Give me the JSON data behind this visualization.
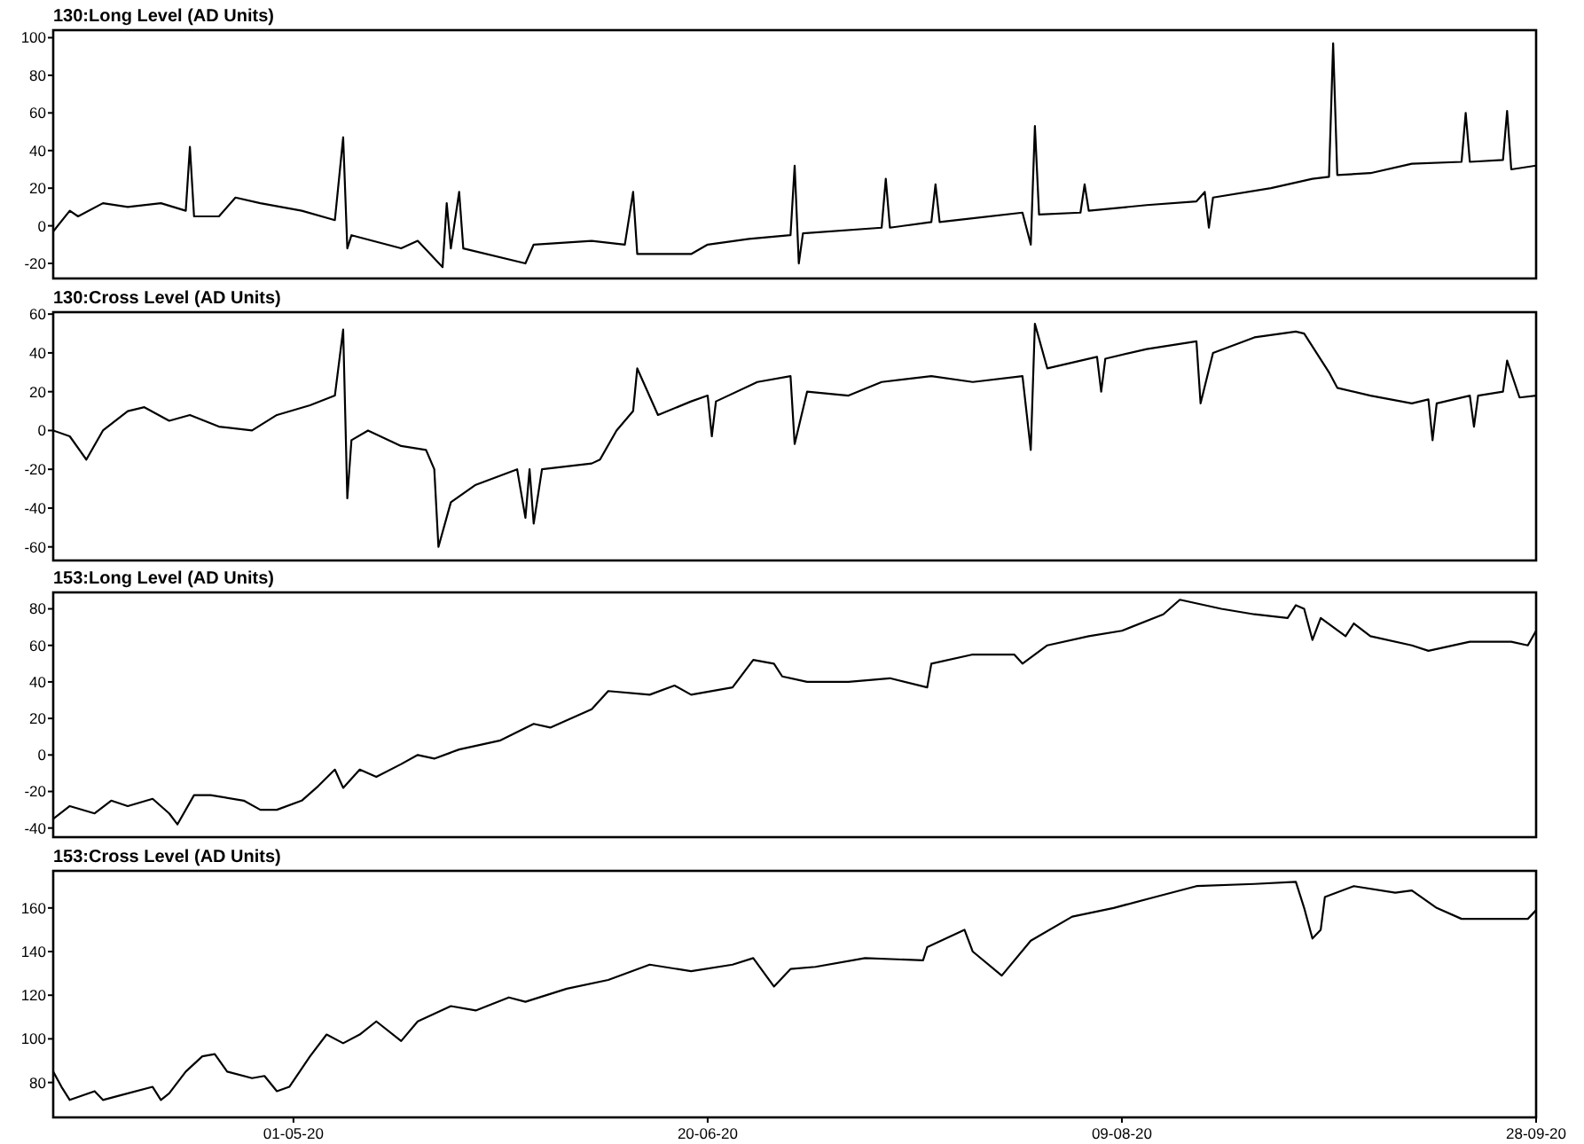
{
  "chart_data": [
    {
      "type": "line",
      "title": "130:Long Level (AD Units)",
      "tick_labels": "y",
      "xlim": [
        "2020-04-02",
        "2020-09-28"
      ],
      "ylim": [
        -28,
        104
      ],
      "yticks": [
        -20,
        0,
        20,
        40,
        60,
        80,
        100
      ],
      "grid": false,
      "marker": "none",
      "line_style": "solid",
      "x": [
        "2020-04-02",
        "2020-04-04",
        "2020-04-05",
        "2020-04-08",
        "2020-04-11",
        "2020-04-15",
        "2020-04-18",
        "2020-04-18T12:00",
        "2020-04-19",
        "2020-04-22",
        "2020-04-24",
        "2020-04-27",
        "2020-05-02",
        "2020-05-06",
        "2020-05-07",
        "2020-05-07T12:00",
        "2020-05-08",
        "2020-05-14",
        "2020-05-16",
        "2020-05-19",
        "2020-05-19T12:00",
        "2020-05-20",
        "2020-05-21",
        "2020-05-21T12:00",
        "2020-05-29",
        "2020-05-30",
        "2020-06-06",
        "2020-06-10",
        "2020-06-11",
        "2020-06-11T12:00",
        "2020-06-18",
        "2020-06-20",
        "2020-06-25",
        "2020-06-30",
        "2020-06-30T12:00",
        "2020-07-01",
        "2020-07-01T12:00",
        "2020-07-11",
        "2020-07-11T12:00",
        "2020-07-12",
        "2020-07-17",
        "2020-07-17T12:00",
        "2020-07-18",
        "2020-07-22",
        "2020-07-28",
        "2020-07-29",
        "2020-07-29T12:00",
        "2020-07-30",
        "2020-08-04",
        "2020-08-04T12:00",
        "2020-08-05",
        "2020-08-12",
        "2020-08-18",
        "2020-08-19",
        "2020-08-19T12:00",
        "2020-08-20",
        "2020-08-27",
        "2020-09-01",
        "2020-09-03",
        "2020-09-03T12:00",
        "2020-09-04",
        "2020-09-08",
        "2020-09-13",
        "2020-09-19",
        "2020-09-19T12:00",
        "2020-09-20",
        "2020-09-24",
        "2020-09-24T12:00",
        "2020-09-25",
        "2020-09-28"
      ],
      "series": [
        {
          "color": "#000000",
          "values": [
            -3,
            8,
            5,
            12,
            10,
            12,
            8,
            42,
            5,
            5,
            15,
            12,
            8,
            3,
            47,
            -12,
            -5,
            -12,
            -8,
            -22,
            12,
            -12,
            18,
            -12,
            -20,
            -10,
            -8,
            -10,
            18,
            -15,
            -15,
            -10,
            -7,
            -5,
            32,
            -20,
            -4,
            -1,
            25,
            -1,
            2,
            22,
            2,
            4,
            7,
            -10,
            53,
            6,
            7,
            22,
            8,
            11,
            13,
            18,
            -1,
            15,
            20,
            25,
            26,
            97,
            27,
            28,
            33,
            34,
            60,
            34,
            35,
            61,
            30,
            32
          ]
        }
      ]
    },
    {
      "type": "line",
      "title": "130:Cross Level (AD Units)",
      "tick_labels": "y",
      "xlim": [
        "2020-04-02",
        "2020-09-28"
      ],
      "ylim": [
        -67,
        61
      ],
      "yticks": [
        -60,
        -40,
        -20,
        0,
        20,
        40,
        60
      ],
      "grid": false,
      "marker": "none",
      "line_style": "solid",
      "x": [
        "2020-04-02",
        "2020-04-04",
        "2020-04-06",
        "2020-04-08",
        "2020-04-11",
        "2020-04-13",
        "2020-04-16",
        "2020-04-18T12:00",
        "2020-04-22",
        "2020-04-26",
        "2020-04-29",
        "2020-05-03",
        "2020-05-06",
        "2020-05-07",
        "2020-05-07T12:00",
        "2020-05-08",
        "2020-05-10",
        "2020-05-14",
        "2020-05-17",
        "2020-05-18",
        "2020-05-18T12:00",
        "2020-05-20",
        "2020-05-23",
        "2020-05-28",
        "2020-05-29",
        "2020-05-29T12:00",
        "2020-05-30",
        "2020-05-31",
        "2020-06-06",
        "2020-06-07",
        "2020-06-09",
        "2020-06-11",
        "2020-06-11T12:00",
        "2020-06-14",
        "2020-06-18",
        "2020-06-20",
        "2020-06-20T12:00",
        "2020-06-21",
        "2020-06-26",
        "2020-06-30",
        "2020-06-30T12:00",
        "2020-07-02",
        "2020-07-07",
        "2020-07-11",
        "2020-07-17",
        "2020-07-22",
        "2020-07-28",
        "2020-07-29",
        "2020-07-29T12:00",
        "2020-07-31",
        "2020-08-06",
        "2020-08-06T12:00",
        "2020-08-07",
        "2020-08-12",
        "2020-08-18",
        "2020-08-18T12:00",
        "2020-08-20",
        "2020-08-25",
        "2020-08-30",
        "2020-08-31",
        "2020-09-03",
        "2020-09-04",
        "2020-09-08",
        "2020-09-13",
        "2020-09-15",
        "2020-09-15T12:00",
        "2020-09-16",
        "2020-09-20",
        "2020-09-20T12:00",
        "2020-09-21",
        "2020-09-24",
        "2020-09-24T12:00",
        "2020-09-26",
        "2020-09-28"
      ],
      "series": [
        {
          "color": "#000000",
          "values": [
            0,
            -3,
            -15,
            0,
            10,
            12,
            5,
            8,
            2,
            0,
            8,
            13,
            18,
            52,
            -35,
            -5,
            0,
            -8,
            -10,
            -20,
            -60,
            -37,
            -28,
            -20,
            -45,
            -20,
            -48,
            -20,
            -17,
            -15,
            0,
            10,
            32,
            8,
            15,
            18,
            -3,
            15,
            25,
            28,
            -7,
            20,
            18,
            25,
            28,
            25,
            28,
            -10,
            55,
            32,
            38,
            20,
            37,
            42,
            46,
            14,
            40,
            48,
            51,
            50,
            30,
            22,
            18,
            14,
            16,
            -5,
            14,
            18,
            2,
            18,
            20,
            36,
            17,
            18
          ]
        }
      ]
    },
    {
      "type": "line",
      "title": "153:Long Level (AD Units)",
      "tick_labels": "y",
      "xlim": [
        "2020-04-02",
        "2020-09-28"
      ],
      "ylim": [
        -45,
        89
      ],
      "yticks": [
        -40,
        -20,
        0,
        20,
        40,
        60,
        80
      ],
      "grid": false,
      "marker": "none",
      "line_style": "solid",
      "x": [
        "2020-04-02",
        "2020-04-04",
        "2020-04-07",
        "2020-04-09",
        "2020-04-11",
        "2020-04-14",
        "2020-04-16",
        "2020-04-17",
        "2020-04-19",
        "2020-04-21",
        "2020-04-25",
        "2020-04-27",
        "2020-04-29",
        "2020-05-02",
        "2020-05-04",
        "2020-05-06",
        "2020-05-07",
        "2020-05-09",
        "2020-05-11",
        "2020-05-14",
        "2020-05-16",
        "2020-05-18",
        "2020-05-21",
        "2020-05-26",
        "2020-05-30",
        "2020-06-01",
        "2020-06-06",
        "2020-06-08",
        "2020-06-13",
        "2020-06-16",
        "2020-06-18",
        "2020-06-23",
        "2020-06-25T12:00",
        "2020-06-28",
        "2020-06-29",
        "2020-07-02",
        "2020-07-07",
        "2020-07-12",
        "2020-07-16T12:00",
        "2020-07-17",
        "2020-07-22",
        "2020-07-27",
        "2020-07-28",
        "2020-07-31",
        "2020-08-05",
        "2020-08-09",
        "2020-08-14",
        "2020-08-16",
        "2020-08-21",
        "2020-08-25",
        "2020-08-29",
        "2020-08-30",
        "2020-08-31",
        "2020-09-01",
        "2020-09-02",
        "2020-09-05",
        "2020-09-06",
        "2020-09-08",
        "2020-09-13",
        "2020-09-15",
        "2020-09-20",
        "2020-09-25",
        "2020-09-27",
        "2020-09-28"
      ],
      "series": [
        {
          "color": "#000000",
          "values": [
            -35,
            -28,
            -32,
            -25,
            -28,
            -24,
            -32,
            -38,
            -22,
            -22,
            -25,
            -30,
            -30,
            -25,
            -17,
            -8,
            -18,
            -8,
            -12,
            -5,
            0,
            -2,
            3,
            8,
            17,
            15,
            25,
            35,
            33,
            38,
            33,
            37,
            52,
            50,
            43,
            40,
            40,
            42,
            37,
            50,
            55,
            55,
            50,
            60,
            65,
            68,
            77,
            85,
            80,
            77,
            75,
            82,
            80,
            63,
            75,
            65,
            72,
            65,
            60,
            57,
            62,
            62,
            60,
            68
          ]
        }
      ]
    },
    {
      "type": "line",
      "title": "153:Cross Level (AD Units)",
      "xlim": [
        "2020-04-02",
        "2020-09-28"
      ],
      "xticks": [
        {
          "value": "2020-05-01",
          "label": "01-05-20"
        },
        {
          "value": "2020-06-20",
          "label": "20-06-20"
        },
        {
          "value": "2020-08-09",
          "label": "09-08-20"
        },
        {
          "value": "2020-09-28",
          "label": "28-09-20"
        }
      ],
      "ylim": [
        64,
        177
      ],
      "yticks": [
        80,
        100,
        120,
        140,
        160
      ],
      "grid": false,
      "marker": "none",
      "line_style": "solid",
      "x": [
        "2020-04-02",
        "2020-04-03",
        "2020-04-04",
        "2020-04-07",
        "2020-04-08",
        "2020-04-10",
        "2020-04-14",
        "2020-04-15",
        "2020-04-16",
        "2020-04-18",
        "2020-04-20",
        "2020-04-21T12:00",
        "2020-04-23",
        "2020-04-26",
        "2020-04-27T12:00",
        "2020-04-29",
        "2020-04-30T12:00",
        "2020-05-03",
        "2020-05-05",
        "2020-05-07",
        "2020-05-09",
        "2020-05-11",
        "2020-05-14",
        "2020-05-16",
        "2020-05-20",
        "2020-05-23",
        "2020-05-27",
        "2020-05-29",
        "2020-06-03",
        "2020-06-08",
        "2020-06-13",
        "2020-06-18",
        "2020-06-23",
        "2020-06-25T12:00",
        "2020-06-28",
        "2020-06-30",
        "2020-07-03",
        "2020-07-09",
        "2020-07-16",
        "2020-07-16T12:00",
        "2020-07-21",
        "2020-07-22",
        "2020-07-25T12:00",
        "2020-07-29",
        "2020-08-03",
        "2020-08-08",
        "2020-08-13",
        "2020-08-18",
        "2020-08-25",
        "2020-08-30",
        "2020-08-31",
        "2020-09-01",
        "2020-09-02",
        "2020-09-02T12:00",
        "2020-09-06",
        "2020-09-11",
        "2020-09-13",
        "2020-09-16",
        "2020-09-19",
        "2020-09-24",
        "2020-09-27",
        "2020-09-28"
      ],
      "series": [
        {
          "color": "#000000",
          "values": [
            85,
            78,
            72,
            76,
            72,
            74,
            78,
            72,
            75,
            85,
            92,
            93,
            85,
            82,
            83,
            76,
            78,
            92,
            102,
            98,
            102,
            108,
            99,
            108,
            115,
            113,
            119,
            117,
            123,
            127,
            134,
            131,
            134,
            137,
            124,
            132,
            133,
            137,
            136,
            142,
            150,
            140,
            129,
            145,
            156,
            160,
            165,
            170,
            171,
            172,
            160,
            146,
            150,
            165,
            170,
            167,
            168,
            160,
            155,
            155,
            155,
            159
          ]
        }
      ]
    }
  ]
}
